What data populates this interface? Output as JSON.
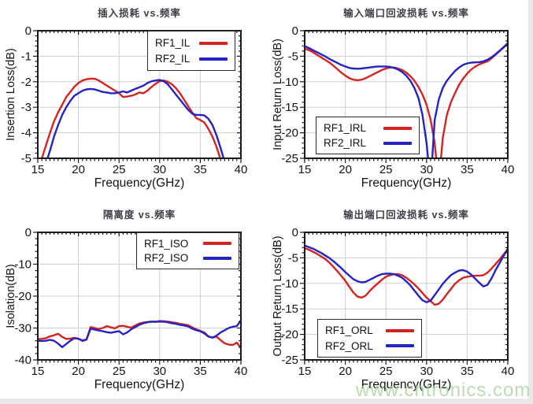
{
  "watermark": "www.cntronics.com",
  "colors": {
    "rf1": "#d42420",
    "rf2": "#2523c4",
    "grid": "#cfcfcf",
    "axis": "#1a1a1a",
    "tick_text": "#141414",
    "title_text": "#3d3d46",
    "watermark": "#9fcf92"
  },
  "chart_data": [
    {
      "type": "line",
      "title": "插入损耗 vs.频率",
      "xlabel": "Frequency(GHz)",
      "ylabel": "Insertion Loss(dB)",
      "xlim": [
        15,
        40
      ],
      "ylim": [
        -5,
        0
      ],
      "xticks": [
        15,
        20,
        25,
        30,
        35,
        40
      ],
      "yticks": [
        0,
        -1,
        -2,
        -3,
        -4,
        -5
      ],
      "x_minor_step": 0.5,
      "y_minor_step": 0.2,
      "grid": true,
      "legend_position": "top-right",
      "x_start": 15,
      "x_step": 0.5,
      "series": [
        {
          "name": "RF1_IL",
          "color_key": "rf1",
          "values": [
            -5.6,
            -5.0,
            -4.5,
            -4.0,
            -3.55,
            -3.2,
            -2.9,
            -2.6,
            -2.4,
            -2.2,
            -2.05,
            -1.95,
            -1.9,
            -1.88,
            -1.88,
            -1.95,
            -2.05,
            -2.15,
            -2.25,
            -2.35,
            -2.45,
            -2.6,
            -2.58,
            -2.55,
            -2.5,
            -2.42,
            -2.45,
            -2.35,
            -2.2,
            -2.08,
            -1.98,
            -1.95,
            -2.0,
            -2.1,
            -2.25,
            -2.45,
            -2.7,
            -2.95,
            -3.2,
            -3.42,
            -3.5,
            -3.6,
            -3.85,
            -4.15,
            -4.55,
            -5.05,
            -5.7,
            -6.2,
            -6.6,
            -7.0,
            -7.4
          ]
        },
        {
          "name": "RF2_IL",
          "color_key": "rf2",
          "values": [
            -6.4,
            -5.8,
            -5.2,
            -4.7,
            -4.15,
            -3.7,
            -3.3,
            -3.0,
            -2.75,
            -2.55,
            -2.45,
            -2.35,
            -2.3,
            -2.28,
            -2.3,
            -2.35,
            -2.4,
            -2.42,
            -2.45,
            -2.45,
            -2.42,
            -2.38,
            -2.42,
            -2.35,
            -2.28,
            -2.22,
            -2.15,
            -2.05,
            -1.98,
            -1.95,
            -1.93,
            -1.98,
            -2.1,
            -2.3,
            -2.5,
            -2.7,
            -2.9,
            -3.1,
            -3.25,
            -3.3,
            -3.3,
            -3.32,
            -3.45,
            -3.7,
            -4.1,
            -4.6,
            -5.15,
            -5.9,
            -6.5,
            -7.0,
            -7.5
          ]
        }
      ]
    },
    {
      "type": "line",
      "title": "输入端口回波损耗 vs.频率",
      "xlabel": "Frequency(GHz)",
      "ylabel": "Input Return Loss(dB)",
      "xlim": [
        15,
        40
      ],
      "ylim": [
        -25,
        0
      ],
      "xticks": [
        15,
        20,
        25,
        30,
        35,
        40
      ],
      "yticks": [
        0,
        -5,
        -10,
        -15,
        -20,
        -25
      ],
      "x_minor_step": 0.5,
      "y_minor_step": 1,
      "grid": true,
      "legend_position": "bottom-left",
      "x_start": 15,
      "x_step": 0.5,
      "series": [
        {
          "name": "RF1_IRL",
          "color_key": "rf1",
          "values": [
            -3.5,
            -3.8,
            -4.2,
            -4.7,
            -5.2,
            -5.7,
            -6.2,
            -6.8,
            -7.5,
            -8.2,
            -8.8,
            -9.3,
            -9.6,
            -9.7,
            -9.6,
            -9.3,
            -8.9,
            -8.5,
            -8.1,
            -7.7,
            -7.4,
            -7.2,
            -7.2,
            -7.4,
            -7.7,
            -8.2,
            -8.9,
            -9.8,
            -11.0,
            -12.5,
            -14.5,
            -17.5,
            -22.0,
            -30.0,
            -21.0,
            -16.5,
            -14.0,
            -12.2,
            -10.6,
            -9.4,
            -8.4,
            -7.6,
            -7.0,
            -6.6,
            -6.3,
            -6.0,
            -5.4,
            -4.7,
            -4.0,
            -3.3,
            -2.5
          ]
        },
        {
          "name": "RF2_IRL",
          "color_key": "rf2",
          "values": [
            -3.0,
            -3.4,
            -3.8,
            -4.2,
            -4.6,
            -5.0,
            -5.5,
            -5.9,
            -6.3,
            -6.7,
            -7.0,
            -7.3,
            -7.4,
            -7.45,
            -7.4,
            -7.3,
            -7.2,
            -7.1,
            -7.0,
            -7.0,
            -7.0,
            -7.1,
            -7.3,
            -7.6,
            -8.1,
            -8.8,
            -9.8,
            -11.2,
            -13.2,
            -16.5,
            -22.0,
            -30.0,
            -17.5,
            -13.5,
            -11.2,
            -9.8,
            -8.8,
            -7.9,
            -7.2,
            -6.7,
            -6.4,
            -6.25,
            -6.2,
            -6.15,
            -6.0,
            -5.7,
            -5.2,
            -4.6,
            -3.9,
            -3.2,
            -2.4
          ]
        }
      ]
    },
    {
      "type": "line",
      "title": "隔离度 vs.频率",
      "xlabel": "Frequency(GHz)",
      "ylabel": "Isolation(dB)",
      "xlim": [
        15,
        40
      ],
      "ylim": [
        -40,
        0
      ],
      "xticks": [
        15,
        20,
        25,
        30,
        35,
        40
      ],
      "yticks": [
        0,
        -10,
        -20,
        -30,
        -40
      ],
      "x_minor_step": 0.5,
      "y_minor_step": 2,
      "grid": true,
      "legend_position": "top-right",
      "x_start": 15,
      "x_step": 0.5,
      "series": [
        {
          "name": "RF1_ISO",
          "color_key": "rf1",
          "values": [
            -33.5,
            -33.4,
            -33.2,
            -32.6,
            -32.3,
            -31.8,
            -32.8,
            -33.4,
            -33.3,
            -33.1,
            -33.3,
            -34.1,
            -33.6,
            -29.7,
            -30.0,
            -30.3,
            -30.0,
            -29.4,
            -29.8,
            -30.1,
            -29.4,
            -29.3,
            -29.6,
            -29.9,
            -29.2,
            -28.6,
            -28.3,
            -28.1,
            -28.0,
            -28.1,
            -27.8,
            -27.9,
            -28.0,
            -28.2,
            -28.4,
            -28.7,
            -28.9,
            -29.1,
            -29.8,
            -30.4,
            -30.9,
            -31.4,
            -32.6,
            -33.0,
            -32.7,
            -33.8,
            -34.8,
            -35.2,
            -35.3,
            -34.6,
            -36.2
          ]
        },
        {
          "name": "RF2_ISO",
          "color_key": "rf2",
          "values": [
            -34.0,
            -34.1,
            -34.0,
            -33.7,
            -34.0,
            -34.9,
            -36.0,
            -35.0,
            -34.0,
            -33.2,
            -33.4,
            -33.9,
            -33.6,
            -30.2,
            -30.5,
            -30.8,
            -31.0,
            -31.3,
            -31.5,
            -31.2,
            -31.0,
            -32.0,
            -31.4,
            -30.4,
            -29.7,
            -29.0,
            -28.5,
            -28.2,
            -28.0,
            -28.0,
            -28.0,
            -28.0,
            -28.2,
            -28.5,
            -28.7,
            -29.0,
            -29.2,
            -29.5,
            -30.2,
            -30.7,
            -31.0,
            -31.7,
            -32.7,
            -33.0,
            -32.4,
            -31.4,
            -30.7,
            -30.0,
            -29.6,
            -29.4,
            -27.6
          ]
        }
      ]
    },
    {
      "type": "line",
      "title": "输出端口回波损耗 vs.频率",
      "xlabel": "Frequency(GHz)",
      "ylabel": "Output Return Loss(dB)",
      "xlim": [
        15,
        40
      ],
      "ylim": [
        -25,
        0
      ],
      "xticks": [
        15,
        20,
        25,
        30,
        35,
        40
      ],
      "yticks": [
        0,
        -5,
        -10,
        -15,
        -20,
        -25
      ],
      "x_minor_step": 0.5,
      "y_minor_step": 1,
      "grid": true,
      "legend_position": "bottom-left",
      "x_start": 15,
      "x_step": 0.5,
      "series": [
        {
          "name": "RF1_ORL",
          "color_key": "rf1",
          "values": [
            -3.1,
            -3.4,
            -3.8,
            -4.2,
            -4.7,
            -5.2,
            -5.9,
            -6.7,
            -7.6,
            -8.5,
            -9.5,
            -10.7,
            -11.8,
            -12.6,
            -12.8,
            -12.4,
            -11.5,
            -10.7,
            -10.0,
            -9.3,
            -8.7,
            -8.4,
            -8.2,
            -8.2,
            -8.4,
            -8.9,
            -9.5,
            -10.2,
            -11.0,
            -11.9,
            -12.8,
            -13.5,
            -14.2,
            -14.0,
            -13.2,
            -12.1,
            -11.1,
            -10.1,
            -9.4,
            -8.9,
            -8.7,
            -8.6,
            -8.5,
            -8.5,
            -8.4,
            -7.9,
            -7.1,
            -6.2,
            -5.3,
            -4.3,
            -3.3
          ]
        },
        {
          "name": "RF2_ORL",
          "color_key": "rf2",
          "values": [
            -2.6,
            -2.9,
            -3.2,
            -3.6,
            -4.0,
            -4.5,
            -5.0,
            -5.6,
            -6.3,
            -7.0,
            -7.8,
            -8.5,
            -9.2,
            -9.6,
            -9.8,
            -9.7,
            -9.3,
            -8.9,
            -8.5,
            -8.2,
            -8.1,
            -8.1,
            -8.2,
            -8.5,
            -8.9,
            -9.6,
            -10.4,
            -11.4,
            -12.4,
            -13.3,
            -13.7,
            -13.4,
            -12.3,
            -11.2,
            -10.1,
            -9.2,
            -8.4,
            -7.9,
            -7.5,
            -7.4,
            -7.7,
            -8.3,
            -9.1,
            -9.9,
            -10.6,
            -10.3,
            -9.0,
            -7.4,
            -6.0,
            -4.6,
            -3.2
          ]
        }
      ]
    }
  ]
}
